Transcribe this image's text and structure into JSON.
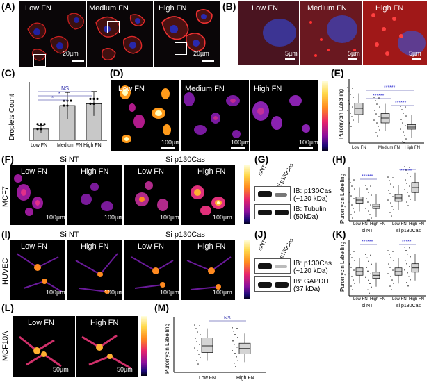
{
  "panels": {
    "A": {
      "label": "(A)",
      "titles": [
        "Low FN",
        "Medium FN",
        "High FN"
      ],
      "scale": [
        "20µm",
        "20µm"
      ]
    },
    "B": {
      "label": "(B)",
      "titles": [
        "Low FN",
        "Medium FN",
        "High FN"
      ],
      "scale": [
        "5µm",
        "5µm",
        "5µm"
      ]
    },
    "C": {
      "label": "(C)",
      "ylabel": "Droplets Count",
      "sig": [
        "NS",
        "*",
        "*"
      ]
    },
    "D": {
      "label": "(D)",
      "titles": [
        "Low FN",
        "Medium FN",
        "High FN"
      ],
      "scale": [
        "100µm",
        "100µm",
        "100µm"
      ]
    },
    "E": {
      "label": "(E)",
      "ylabel": "Puromycin Labelling",
      "sig": [
        "******",
        "******",
        "******"
      ]
    },
    "F": {
      "label": "(F)",
      "groups": [
        "Si NT",
        "Si p130Cas"
      ],
      "titles": [
        "Low FN",
        "High FN",
        "Low FN",
        "High FN"
      ],
      "cell": "MCF7",
      "scale": [
        "100µm",
        "100µm",
        "100µm",
        "100µm"
      ]
    },
    "G": {
      "label": "(G)",
      "lanes": [
        "siNT",
        "si p130Cas"
      ],
      "blots": [
        "IB: p130Cas",
        "(~120 kDa)",
        "IB: Tubulin",
        "(50kDa)"
      ]
    },
    "H": {
      "label": "(H)",
      "ylabel": "Puromycin Labelling",
      "sig": [
        "******",
        "******"
      ],
      "groups": [
        "si NT",
        "si p130Cas"
      ]
    },
    "I": {
      "label": "(I)",
      "groups": [
        "Si NT",
        "Si p130Cas"
      ],
      "titles": [
        "Low FN",
        "High FN",
        "Low FN",
        "High FN"
      ],
      "cell": "HUVEC",
      "scale": [
        "100µm",
        "100µm",
        "100µm",
        "100µm"
      ]
    },
    "J": {
      "label": "(J)",
      "lanes": [
        "siNT",
        "si p130Cas"
      ],
      "blots": [
        "IB: p130Cas",
        "(~120 kDa)",
        "IB: GAPDH",
        "(37 kDa)"
      ]
    },
    "K": {
      "label": "(K)",
      "ylabel": "Puromycin Labelling",
      "sig": [
        "******",
        "*****"
      ],
      "groups": [
        "si NT",
        "si p130Cas"
      ]
    },
    "L": {
      "label": "(L)",
      "titles": [
        "Low FN",
        "High FN"
      ],
      "cell": "MCF10A",
      "scale": [
        "50µm",
        "50µm"
      ]
    },
    "M": {
      "label": "(M)",
      "ylabel": "Puromycin Labelling",
      "sig": [
        "NS"
      ]
    }
  },
  "chart_data": [
    {
      "id": "C",
      "type": "bar",
      "categories": [
        "Low FN",
        "Medium FN",
        "High FN"
      ],
      "values": [
        60,
        185,
        195
      ],
      "errors": [
        20,
        70,
        65
      ],
      "ylabel": "Droplets Count"
    },
    {
      "id": "E",
      "type": "box",
      "categories": [
        "Low FN",
        "Medium FN",
        "High FN"
      ],
      "medians": [
        1.0,
        0.72,
        0.46
      ],
      "q1": [
        0.82,
        0.58,
        0.4
      ],
      "q3": [
        1.15,
        0.85,
        0.53
      ],
      "ylabel": "Puromycin Labelling"
    },
    {
      "id": "H",
      "type": "box",
      "categories": [
        "Low FN",
        "High FN",
        "Low FN",
        "High FN"
      ],
      "groups": [
        "si NT",
        "si p130Cas"
      ],
      "medians": [
        1.0,
        0.7,
        1.1,
        1.6
      ],
      "ylabel": "Puromycin Labelling"
    },
    {
      "id": "K",
      "type": "box",
      "categories": [
        "Low FN",
        "High FN",
        "Low FN",
        "High FN"
      ],
      "groups": [
        "si NT",
        "si p130Cas"
      ],
      "medians": [
        1.0,
        0.85,
        1.0,
        1.15
      ],
      "ylabel": "Puromycin Labelling"
    },
    {
      "id": "M",
      "type": "box",
      "categories": [
        "Low FN",
        "High FN"
      ],
      "medians": [
        1.0,
        0.9
      ],
      "q1": [
        0.75,
        0.7
      ],
      "q3": [
        1.3,
        1.1
      ],
      "ylabel": "Puromycin Labelling"
    }
  ]
}
